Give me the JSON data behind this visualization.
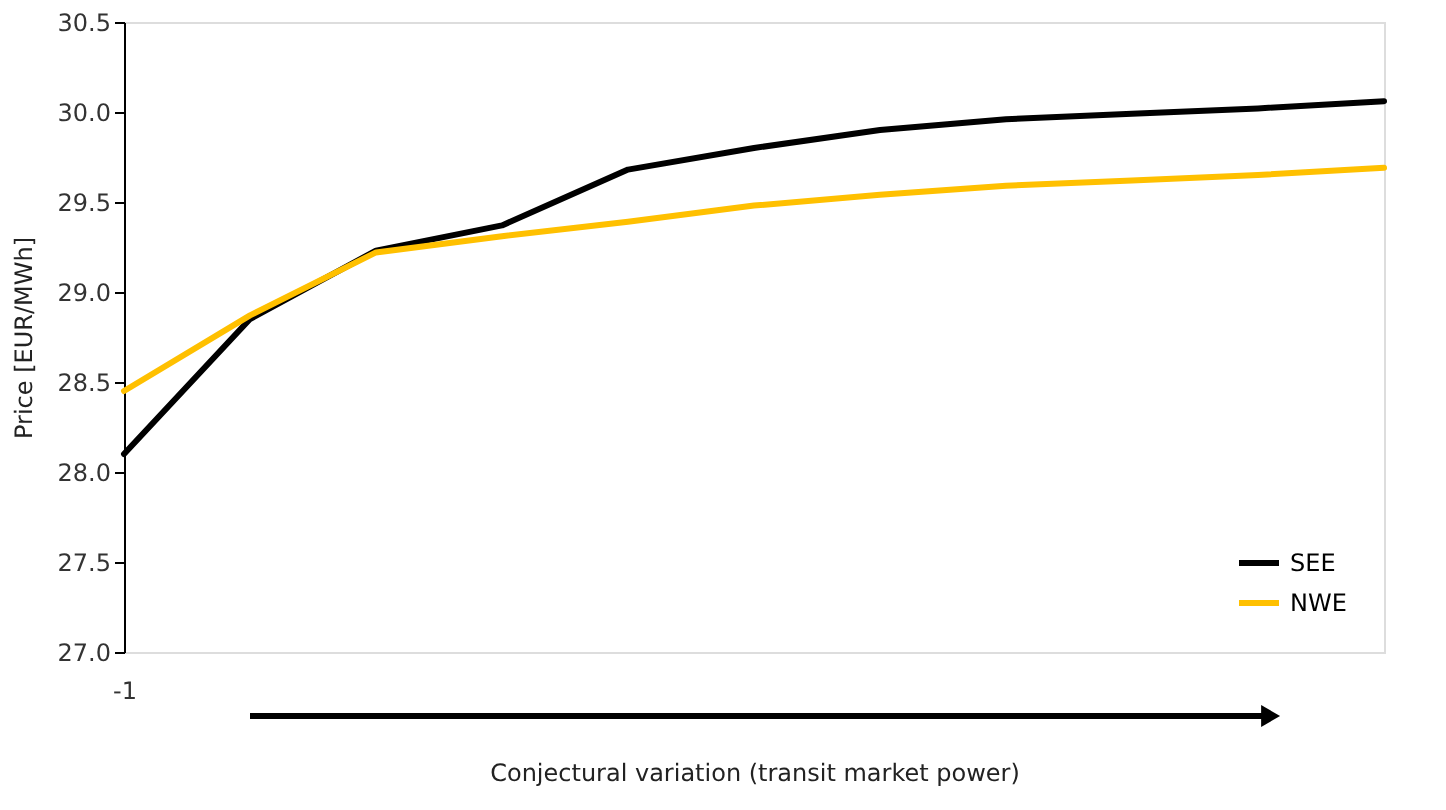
{
  "chart_data": {
    "type": "line",
    "xlabel": "Conjectural variation (transit market power)",
    "ylabel": "Price [EUR/MWh]",
    "categories": [
      "-1",
      null,
      null,
      null,
      null,
      null,
      null,
      null,
      null,
      null,
      null
    ],
    "series": [
      {
        "name": "SEE",
        "color": "#000000",
        "values": [
          28.1,
          28.85,
          29.23,
          29.37,
          29.68,
          29.8,
          29.9,
          29.96,
          29.99,
          30.02,
          30.06
        ]
      },
      {
        "name": "NWE",
        "color": "#ffc000",
        "values": [
          28.45,
          28.87,
          29.22,
          29.31,
          29.39,
          29.48,
          29.54,
          29.59,
          29.62,
          29.65,
          29.69
        ]
      }
    ],
    "ylim": [
      27.0,
      30.5
    ],
    "yticks": [
      {
        "value": 27.0,
        "label": "27.0"
      },
      27.5,
      {
        "value": 28.0,
        "label": "28.0"
      },
      28.5,
      {
        "value": 29.0,
        "label": "29.0"
      },
      29.5,
      {
        "value": 30.0,
        "label": "30.0"
      },
      30.5
    ],
    "grid": false,
    "legend": "bottom right",
    "marker": "none",
    "line_style": "solid"
  }
}
